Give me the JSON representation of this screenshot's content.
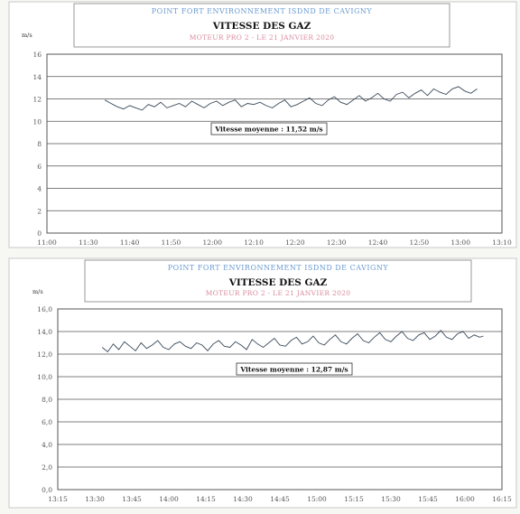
{
  "chart_data": [
    {
      "type": "line",
      "header_top": "POINT FORT ENVIRONNEMENT   ISDND DE CAVIGNY",
      "title": "VITESSE DES GAZ",
      "subtitle": "MOTEUR PRO 2 - LE 21 JANVIER 2020",
      "unit": "m/s",
      "y_ticks": [
        "16",
        "14",
        "12",
        "10",
        "8",
        "6",
        "4",
        "2",
        "0"
      ],
      "ylim": [
        0,
        16
      ],
      "x_ticks": [
        "11:00",
        "11:30",
        "11:40",
        "11:50",
        "12:00",
        "12:10",
        "12:20",
        "12:30",
        "12:40",
        "12:50",
        "13:00",
        "13:10"
      ],
      "annotation": "Vitesse moyenne : 11,52 m/s",
      "grid": true,
      "series": [
        {
          "x": [
            1.4,
            1.55,
            1.7,
            1.85,
            2.0,
            2.15,
            2.3,
            2.45,
            2.6,
            2.75,
            2.9,
            3.05,
            3.2,
            3.35,
            3.5,
            3.65,
            3.8,
            3.95,
            4.1,
            4.25,
            4.4,
            4.55,
            4.7,
            4.85,
            5.0,
            5.15,
            5.3,
            5.45,
            5.6,
            5.75,
            5.9,
            6.05,
            6.2,
            6.35,
            6.5,
            6.65,
            6.8,
            6.95,
            7.1,
            7.25,
            7.4,
            7.55,
            7.7,
            7.85,
            8.0,
            8.15,
            8.3,
            8.45,
            8.6,
            8.75,
            8.9,
            9.05,
            9.2,
            9.35,
            9.5,
            9.65,
            9.8,
            9.95,
            10.1,
            10.25,
            10.4
          ],
          "values": [
            11.9,
            11.6,
            11.3,
            11.1,
            11.4,
            11.2,
            11.0,
            11.5,
            11.3,
            11.7,
            11.2,
            11.4,
            11.6,
            11.3,
            11.8,
            11.5,
            11.2,
            11.6,
            11.8,
            11.4,
            11.7,
            11.9,
            11.3,
            11.6,
            11.5,
            11.7,
            11.4,
            11.2,
            11.6,
            11.9,
            11.3,
            11.5,
            11.8,
            12.1,
            11.6,
            11.4,
            11.9,
            12.2,
            11.7,
            11.5,
            11.9,
            12.3,
            11.8,
            12.1,
            12.5,
            12.0,
            11.8,
            12.4,
            12.6,
            12.1,
            12.5,
            12.8,
            12.3,
            12.9,
            12.6,
            12.4,
            12.9,
            13.1,
            12.7,
            12.5,
            12.9
          ]
        }
      ]
    },
    {
      "type": "line",
      "header_top": "POINT FORT ENVIRONNEMENT   ISDND DE CAVIGNY",
      "title": "VITESSE DES GAZ",
      "subtitle": "MOTEUR PRO 2 - LE 21 JANVIER 2020",
      "unit": "m/s",
      "y_ticks": [
        "16,0",
        "14,0",
        "12,0",
        "10,0",
        "8,0",
        "6,0",
        "4,0",
        "2,0",
        "0,0"
      ],
      "ylim": [
        0,
        16
      ],
      "x_ticks": [
        "13:15",
        "13:30",
        "13:45",
        "14:00",
        "14:15",
        "14:30",
        "14:45",
        "15:00",
        "15:15",
        "15:30",
        "15:45",
        "16:00",
        "16:15"
      ],
      "annotation": "Vitesse moyenne : 12,87 m/s",
      "grid": true,
      "series": [
        {
          "x": [
            1.2,
            1.35,
            1.5,
            1.65,
            1.8,
            1.95,
            2.1,
            2.25,
            2.4,
            2.55,
            2.7,
            2.85,
            3.0,
            3.15,
            3.3,
            3.45,
            3.6,
            3.75,
            3.9,
            4.05,
            4.2,
            4.35,
            4.5,
            4.65,
            4.8,
            4.95,
            5.1,
            5.25,
            5.4,
            5.55,
            5.7,
            5.85,
            6.0,
            6.15,
            6.3,
            6.45,
            6.6,
            6.75,
            6.9,
            7.05,
            7.2,
            7.35,
            7.5,
            7.65,
            7.8,
            7.95,
            8.1,
            8.25,
            8.4,
            8.55,
            8.7,
            8.85,
            9.0,
            9.15,
            9.3,
            9.45,
            9.6,
            9.75,
            9.9,
            10.05,
            10.2,
            10.35,
            10.5,
            10.65,
            10.8,
            10.95,
            11.1,
            11.25,
            11.4,
            11.5
          ],
          "values": [
            12.6,
            12.2,
            12.9,
            12.4,
            13.1,
            12.7,
            12.3,
            13.0,
            12.5,
            12.8,
            13.2,
            12.6,
            12.4,
            12.9,
            13.1,
            12.7,
            12.5,
            13.0,
            12.8,
            12.3,
            12.9,
            13.2,
            12.7,
            12.6,
            13.1,
            12.8,
            12.4,
            13.3,
            12.9,
            12.6,
            13.0,
            13.4,
            12.8,
            12.7,
            13.2,
            13.5,
            12.9,
            13.1,
            13.6,
            13.0,
            12.8,
            13.3,
            13.7,
            13.1,
            12.9,
            13.4,
            13.8,
            13.2,
            13.0,
            13.5,
            13.9,
            13.3,
            13.1,
            13.6,
            14.0,
            13.4,
            13.2,
            13.7,
            13.9,
            13.3,
            13.6,
            14.1,
            13.5,
            13.3,
            13.8,
            14.0,
            13.4,
            13.7,
            13.5,
            13.6
          ]
        }
      ]
    }
  ]
}
